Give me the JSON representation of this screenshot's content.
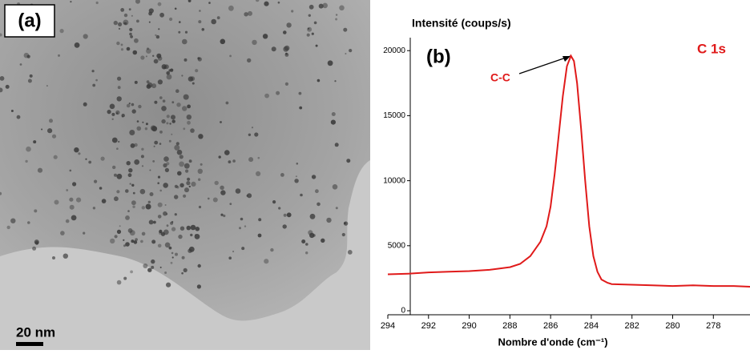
{
  "image_panel": {
    "label": "(a)",
    "scale_bar": "20 nm"
  },
  "chart_data": {
    "type": "line",
    "title": "(b)",
    "y_label": "Intensité (coups/s)",
    "x_label": "Nombre d'onde (cm⁻¹)",
    "annotations": [
      "C-C",
      "C 1s"
    ],
    "x": [
      294,
      293,
      292,
      291,
      290,
      289,
      288.5,
      288,
      287.5,
      287,
      286.5,
      286.2,
      286,
      285.8,
      285.6,
      285.4,
      285.2,
      285,
      284.85,
      284.7,
      284.5,
      284.3,
      284.1,
      283.9,
      283.7,
      283.5,
      283.2,
      283,
      282,
      281,
      280,
      279,
      278,
      277,
      276.2
    ],
    "series": [
      {
        "name": "C 1s",
        "color": "#e01a1a",
        "values": [
          2800,
          2850,
          2950,
          3000,
          3050,
          3150,
          3250,
          3350,
          3600,
          4200,
          5300,
          6500,
          8000,
          10500,
          13500,
          16500,
          18800,
          19600,
          19200,
          17500,
          14000,
          10000,
          6500,
          4200,
          3000,
          2400,
          2150,
          2050,
          2000,
          1950,
          1900,
          1950,
          1900,
          1900,
          1850
        ]
      }
    ],
    "xlim": [
      294,
      276.2
    ],
    "xticks": [
      294,
      292,
      290,
      288,
      286,
      284,
      282,
      280,
      278
    ],
    "ylim": [
      0,
      21000
    ],
    "yticks": [
      0,
      5000,
      10000,
      15000,
      20000
    ]
  }
}
